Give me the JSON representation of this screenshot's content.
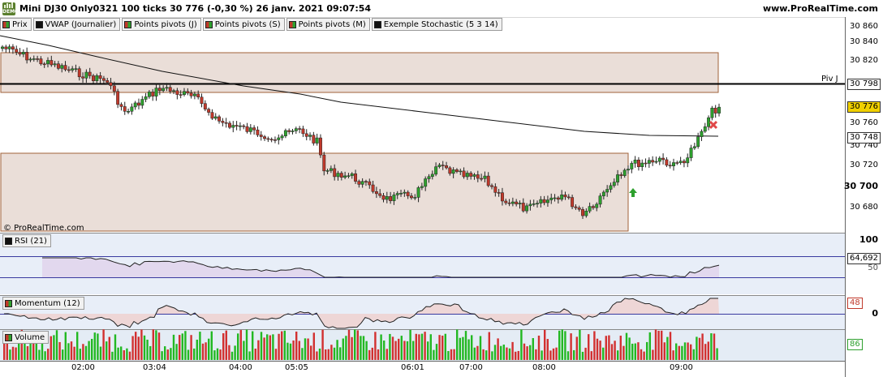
{
  "app": {
    "logo_text": "DEMO",
    "title": "Mini DJ30 Only0321 100 ticks 30 776 (-0,30 %) 26 janv. 2021 09:07:54",
    "url": "www.ProRealTime.com",
    "watermark": "© ProRealTime.com"
  },
  "legend": [
    {
      "label": "Prix",
      "swatch": "split"
    },
    {
      "label": "VWAP (Journalier)",
      "swatch": "black"
    },
    {
      "label": "Points pivots (J)",
      "swatch": "split"
    },
    {
      "label": "Points pivots (S)",
      "swatch": "split"
    },
    {
      "label": "Points pivots (M)",
      "swatch": "split"
    },
    {
      "label": "Exemple Stochastic (5 3 14)",
      "swatch": "black"
    }
  ],
  "price_axis": {
    "ticks": [
      "30 860",
      "30 840",
      "30 820",
      "30 760",
      "30 740",
      "30 720",
      "30 700",
      "30 680"
    ],
    "bold_tick": "30 700",
    "pivot_label": "Piv J",
    "pivot_value": "30 798",
    "last_price": "30 776",
    "vwap_value": "30 748"
  },
  "panels": {
    "rsi": {
      "label": "RSI (21)",
      "value": "64,692",
      "scale_top": "100",
      "scale_mid": "50"
    },
    "momentum": {
      "label": "Momentum (12)",
      "value": "48",
      "zero": "0"
    },
    "volume": {
      "label": "Volume",
      "value": "86"
    }
  },
  "time_axis": [
    "02:00",
    "03:04",
    "04:00",
    "05:05",
    "06:01",
    "07:00",
    "08:00",
    "09:00"
  ],
  "colors": {
    "up": "#2ea02e",
    "down": "#c0392b",
    "zone_fill": "#eaded8",
    "zone_border": "#a0623a",
    "rsi_fill": "#e2d8ee",
    "rsi_bg": "#e8eef8",
    "mom_up": "#cfe3d6",
    "mom_down": "#eed6d6",
    "price_tag": "#f0d000",
    "pivot_tag": "#ffffff"
  }
}
